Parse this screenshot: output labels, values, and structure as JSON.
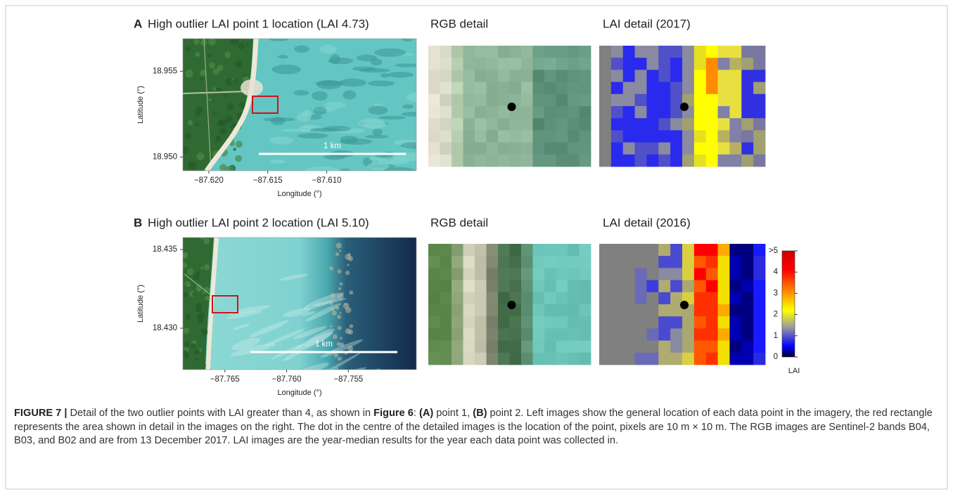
{
  "panels": [
    {
      "label": "A",
      "title": "High outlier LAI point 1 location (LAI 4.73)",
      "rgb_title": "RGB detail",
      "lai_title": "LAI detail (2017)",
      "map": {
        "xlabel": "Longitude (°)",
        "ylabel": "Latitude (°)",
        "scale_bar": "1 km",
        "xlim": [
          -87.6222,
          -87.6024
        ],
        "ylim": [
          18.9492,
          18.9569
        ],
        "xticks": [
          {
            "value": -87.62,
            "label": "−87.620"
          },
          {
            "value": -87.615,
            "label": "−87.615"
          },
          {
            "value": -87.61,
            "label": "−87.610"
          }
        ],
        "yticks": [
          {
            "value": 18.95,
            "label": "18.950"
          },
          {
            "value": 18.955,
            "label": "18.955"
          }
        ]
      }
    },
    {
      "label": "B",
      "title": "High outlier LAI point 2 location (LAI 5.10)",
      "rgb_title": "RGB detail",
      "lai_title": "LAI detail (2016)",
      "map": {
        "xlabel": "Longitude (°)",
        "ylabel": "Latitude (°)",
        "scale_bar": "1 km",
        "xlim": [
          -87.7684,
          -87.7495
        ],
        "ylim": [
          18.42737,
          18.43576
        ],
        "xticks": [
          {
            "value": -87.765,
            "label": "−87.765"
          },
          {
            "value": -87.76,
            "label": "−87.760"
          },
          {
            "value": -87.755,
            "label": "−87.755"
          }
        ],
        "yticks": [
          {
            "value": 18.43,
            "label": "18.430"
          },
          {
            "value": 18.435,
            "label": "18.435"
          }
        ]
      }
    }
  ],
  "colorbar": {
    "label": "LAI",
    "lim": [
      0,
      5
    ],
    "ticks": [
      0,
      1,
      2,
      3,
      4,
      {
        "value": 5,
        "label": ">5"
      }
    ]
  },
  "caption": [
    {
      "text": "FIGURE 7 |",
      "bold": true
    },
    {
      "text": " Detail of the two outlier points with LAI greater than 4, as shown in ",
      "bold": false
    },
    {
      "text": "Figure 6",
      "bold": true
    },
    {
      "text": ": ",
      "bold": false
    },
    {
      "text": "(A)",
      "bold": true
    },
    {
      "text": " point 1, ",
      "bold": false
    },
    {
      "text": "(B)",
      "bold": true
    },
    {
      "text": " point 2. Left images show the general location of each data point in the imagery, the red rectangle represents the area shown in detail in the images on the right. The dot in the centre of the detailed images is the location of the point, pixels are 10 m × 10 m. The RGB images are Sentinel-2 bands B04, B03, and B02 and are from 13 December 2017. LAI images are the year-median results for the year each data point was collected in.",
      "bold": false
    }
  ]
}
